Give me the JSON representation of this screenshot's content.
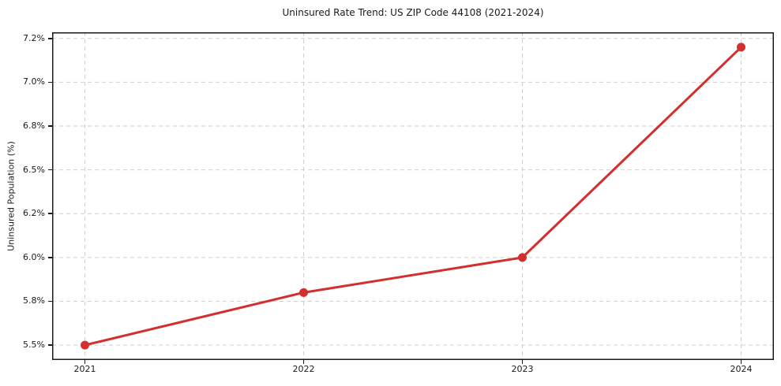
{
  "chart_data": {
    "type": "line",
    "title": "Uninsured Rate Trend: US ZIP Code 44108 (2021-2024)",
    "xlabel": "",
    "ylabel": "Uninsured Population (%)",
    "categories": [
      "2021",
      "2022",
      "2023",
      "2024"
    ],
    "values": [
      5.5,
      5.8,
      6.0,
      7.2
    ],
    "y_ticks": [
      {
        "value": 5.5,
        "label": "5.5%"
      },
      {
        "value": 5.75,
        "label": "5.8%"
      },
      {
        "value": 6.0,
        "label": "6.0%"
      },
      {
        "value": 6.25,
        "label": "6.2%"
      },
      {
        "value": 6.5,
        "label": "6.5%"
      },
      {
        "value": 6.75,
        "label": "6.8%"
      },
      {
        "value": 7.0,
        "label": "7.0%"
      },
      {
        "value": 7.25,
        "label": "7.2%"
      }
    ],
    "ylim": [
      5.415,
      7.285
    ],
    "xlim": [
      -0.15,
      3.15
    ],
    "grid": true,
    "legend": false,
    "colors": {
      "line": "#d32f2f",
      "marker": "#d32f2f",
      "grid": "#d0d0d0",
      "spine": "#1a1a1a",
      "text": "#1a1a1a",
      "background": "#ffffff"
    }
  }
}
